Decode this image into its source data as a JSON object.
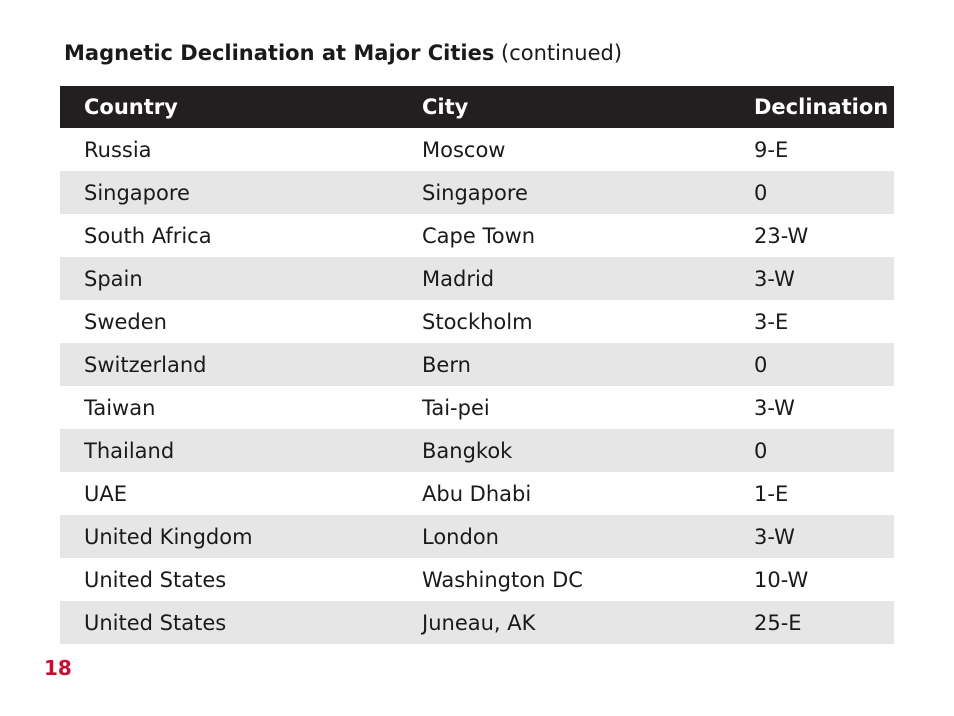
{
  "heading": {
    "title_bold": "Magnetic Declination at Major Cities",
    "title_suffix": "(continued)"
  },
  "table": {
    "columns": [
      "Country",
      "City",
      "Declination"
    ],
    "rows": [
      [
        "Russia",
        "Moscow",
        "9-E"
      ],
      [
        "Singapore",
        "Singapore",
        "0"
      ],
      [
        "South Africa",
        "Cape Town",
        "23-W"
      ],
      [
        "Spain",
        "Madrid",
        "3-W"
      ],
      [
        "Sweden",
        "Stockholm",
        "3-E"
      ],
      [
        "Switzerland",
        "Bern",
        "0"
      ],
      [
        "Taiwan",
        "Tai-pei",
        "3-W"
      ],
      [
        "Thailand",
        "Bangkok",
        "0"
      ],
      [
        "UAE",
        "Abu Dhabi",
        "1-E"
      ],
      [
        "United Kingdom",
        "London",
        "3-W"
      ],
      [
        "United States",
        "Washington DC",
        "10-W"
      ],
      [
        "United States",
        "Juneau, AK",
        "25-E"
      ]
    ]
  },
  "page_number": "18",
  "colors": {
    "header_bg": "#231f20",
    "stripe_bg": "#e6e6e7",
    "page_number": "#c8102e"
  }
}
